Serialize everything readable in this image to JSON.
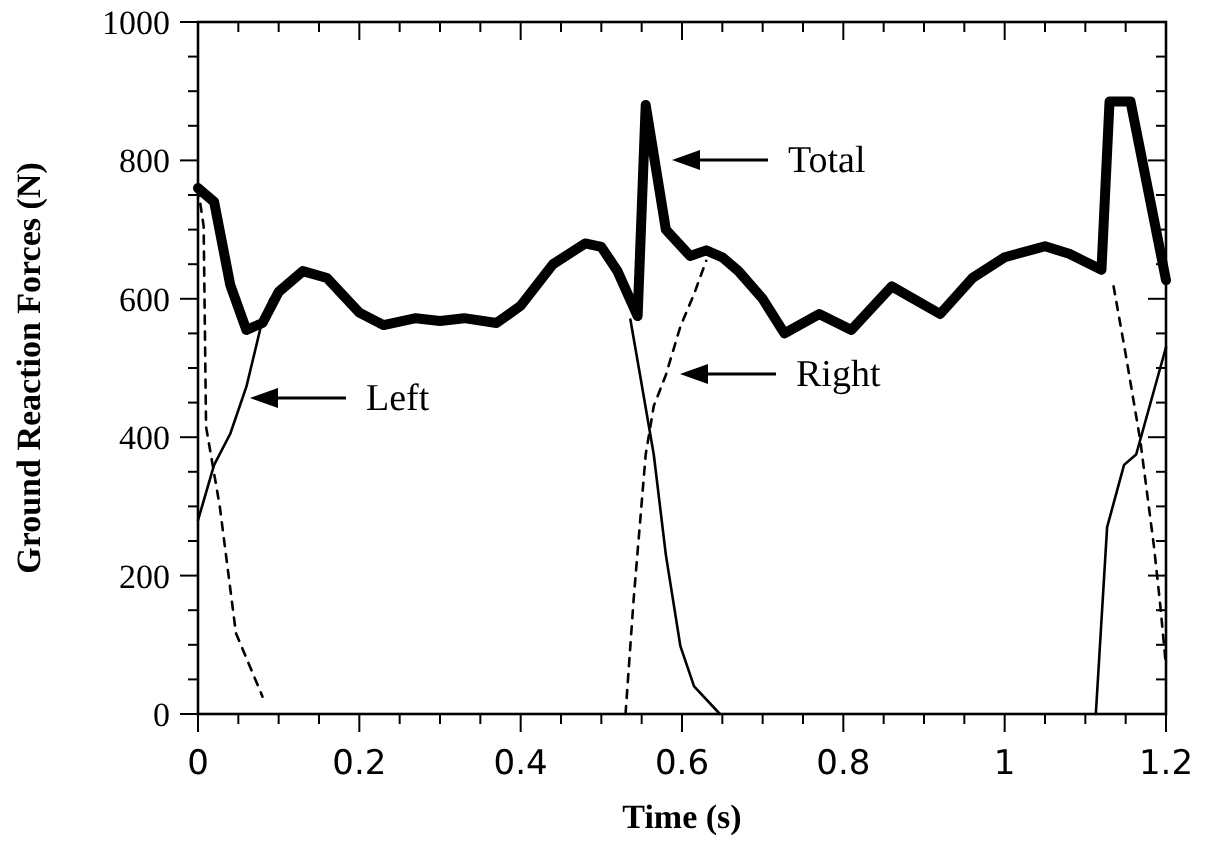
{
  "chart_data": {
    "type": "line",
    "xlabel": "Time (s)",
    "ylabel": "Ground Reaction Forces (N)",
    "xlim": [
      0,
      1.2
    ],
    "ylim": [
      0,
      1000
    ],
    "xticks": [
      0,
      {
        "value": 0.05,
        "label": null
      },
      {
        "value": 0.1,
        "label": null
      },
      {
        "value": 0.15,
        "label": null
      },
      0.2,
      {
        "value": 0.25,
        "label": null
      },
      {
        "value": 0.3,
        "label": null
      },
      {
        "value": 0.35,
        "label": null
      },
      0.4,
      {
        "value": 0.45,
        "label": null
      },
      {
        "value": 0.5,
        "label": null
      },
      {
        "value": 0.55,
        "label": null
      },
      0.6,
      {
        "value": 0.65,
        "label": null
      },
      {
        "value": 0.7,
        "label": null
      },
      {
        "value": 0.75,
        "label": null
      },
      0.8,
      {
        "value": 0.85,
        "label": null
      },
      {
        "value": 0.9,
        "label": null
      },
      {
        "value": 0.95,
        "label": null
      },
      1,
      {
        "value": 1.05,
        "label": null
      },
      {
        "value": 1.1,
        "label": null
      },
      {
        "value": 1.15,
        "label": null
      },
      1.2
    ],
    "yticks": [
      0,
      {
        "value": 50,
        "label": null
      },
      {
        "value": 100,
        "label": null
      },
      {
        "value": 150,
        "label": null
      },
      200,
      {
        "value": 250,
        "label": null
      },
      {
        "value": 300,
        "label": null
      },
      {
        "value": 350,
        "label": null
      },
      400,
      {
        "value": 450,
        "label": null
      },
      {
        "value": 500,
        "label": null
      },
      {
        "value": 550,
        "label": null
      },
      600,
      {
        "value": 650,
        "label": null
      },
      {
        "value": 700,
        "label": null
      },
      {
        "value": 750,
        "label": null
      },
      800,
      {
        "value": 850,
        "label": null
      },
      {
        "value": 900,
        "label": null
      },
      {
        "value": 950,
        "label": null
      },
      1000
    ],
    "grid": false,
    "marker": "none",
    "series": [
      {
        "color": "#000000",
        "line_style": "solid",
        "x": [
          0,
          0.02,
          0.04,
          0.06,
          0.08,
          0.1,
          0.13,
          0.16,
          0.2,
          0.23,
          0.27,
          0.3,
          0.33,
          0.37,
          0.4,
          0.44,
          0.48,
          0.5,
          0.52,
          0.545,
          0.555,
          0.58,
          0.61,
          0.63,
          0.65,
          0.67,
          0.7,
          0.727,
          0.77,
          0.81,
          0.86,
          0.92,
          0.96,
          1.0,
          1.05,
          1.08,
          1.12,
          1.13,
          1.156,
          1.2
        ],
        "values": [
          760,
          740,
          620,
          555,
          565,
          610,
          640,
          630,
          580,
          562,
          572,
          568,
          572,
          565,
          590,
          650,
          680,
          675,
          640,
          575,
          880,
          700,
          662,
          670,
          660,
          640,
          600,
          550,
          578,
          555,
          618,
          578,
          630,
          660,
          676,
          665,
          642,
          885,
          885,
          627
        ]
      },
      {
        "color": "#000000",
        "line_style": "solid",
        "x": [
          0,
          0.02,
          0.04,
          0.06,
          0.08,
          0.09,
          0.1,
          0.536,
          0.548,
          0.565,
          0.58,
          0.598,
          0.615,
          0.647,
          0.65,
          1.11,
          1.113,
          1.127,
          1.148,
          1.163,
          1.2
        ],
        "values": [
          280,
          360,
          405,
          473,
          570,
          600,
          null,
          570,
          490,
          375,
          230,
          98,
          40,
          0,
          null,
          null,
          0,
          270,
          360,
          375,
          530
        ]
      },
      {
        "color": "#000000",
        "line_style": "dashed",
        "x": [
          0,
          0.007,
          0.01,
          0.027,
          0.047,
          0.08,
          0.1,
          0.53,
          0.54,
          0.555,
          0.565,
          0.58,
          0.598,
          0.615,
          0.63,
          0.65,
          1.12,
          1.135,
          1.15,
          1.168,
          1.185,
          1.193,
          1.2
        ],
        "values": [
          760,
          705,
          415,
          300,
          117,
          25,
          null,
          0,
          165,
          375,
          445,
          490,
          560,
          607,
          655,
          null,
          null,
          618,
          520,
          396,
          243,
          156,
          69
        ]
      }
    ],
    "annotations": [
      "Left",
      "Total",
      "Right"
    ]
  }
}
